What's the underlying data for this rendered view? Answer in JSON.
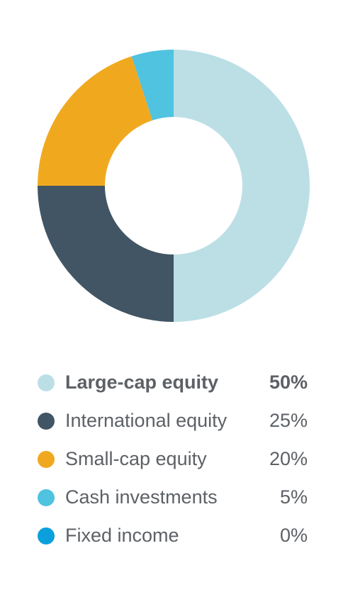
{
  "chart_data": {
    "type": "pie",
    "categories": [
      "Large-cap equity",
      "International equity",
      "Small-cap equity",
      "Cash investments",
      "Fixed income"
    ],
    "values": [
      50,
      25,
      20,
      5,
      0
    ],
    "value_labels": [
      "50%",
      "25%",
      "20%",
      "5%",
      "0%"
    ],
    "colors": [
      "#bcdfe6",
      "#415564",
      "#f0a91f",
      "#4fc3e0",
      "#0aa0dc"
    ]
  }
}
